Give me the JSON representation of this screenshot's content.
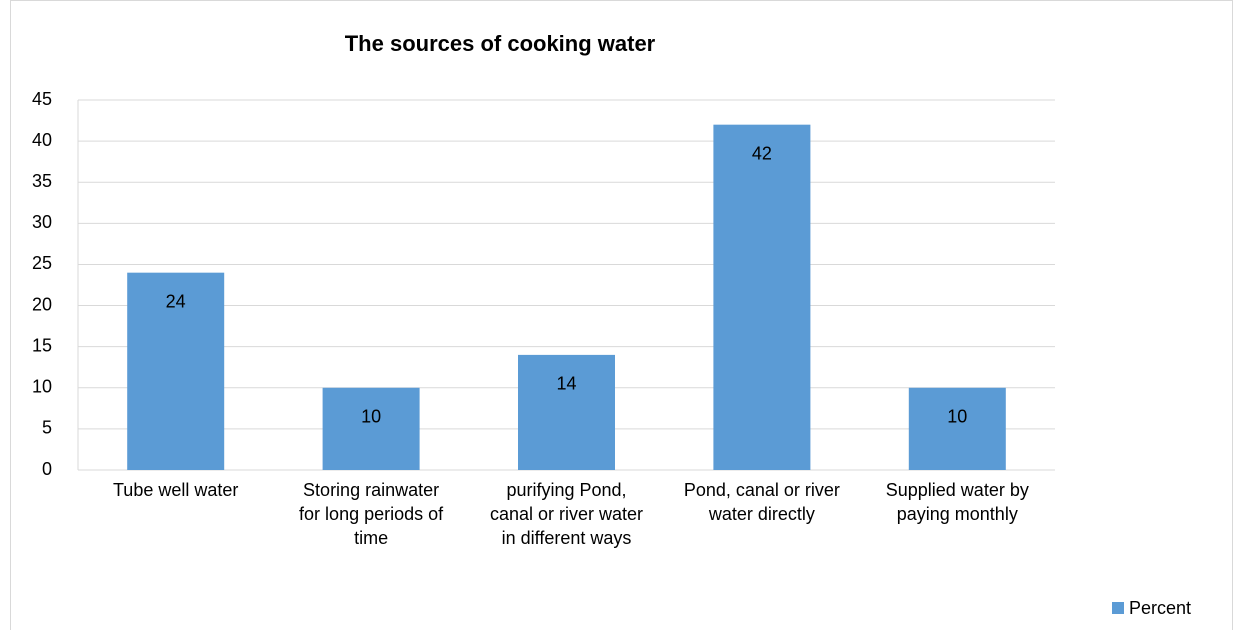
{
  "chart_data": {
    "type": "bar",
    "title": "The sources of cooking water",
    "categories": [
      "Tube well water",
      "Storing rainwater for long periods of time",
      "purifying Pond, canal or river water in different ways",
      "Pond, canal or river water directly",
      "Supplied water by paying monthly"
    ],
    "series": [
      {
        "name": "Percent",
        "color": "#5b9bd5",
        "values": [
          24,
          10,
          14,
          42,
          10
        ]
      }
    ],
    "ylim": [
      0,
      45
    ],
    "yticks": [
      0,
      5,
      10,
      15,
      20,
      25,
      30,
      35,
      40,
      45
    ],
    "grid": true,
    "legend": "bottom-right"
  }
}
